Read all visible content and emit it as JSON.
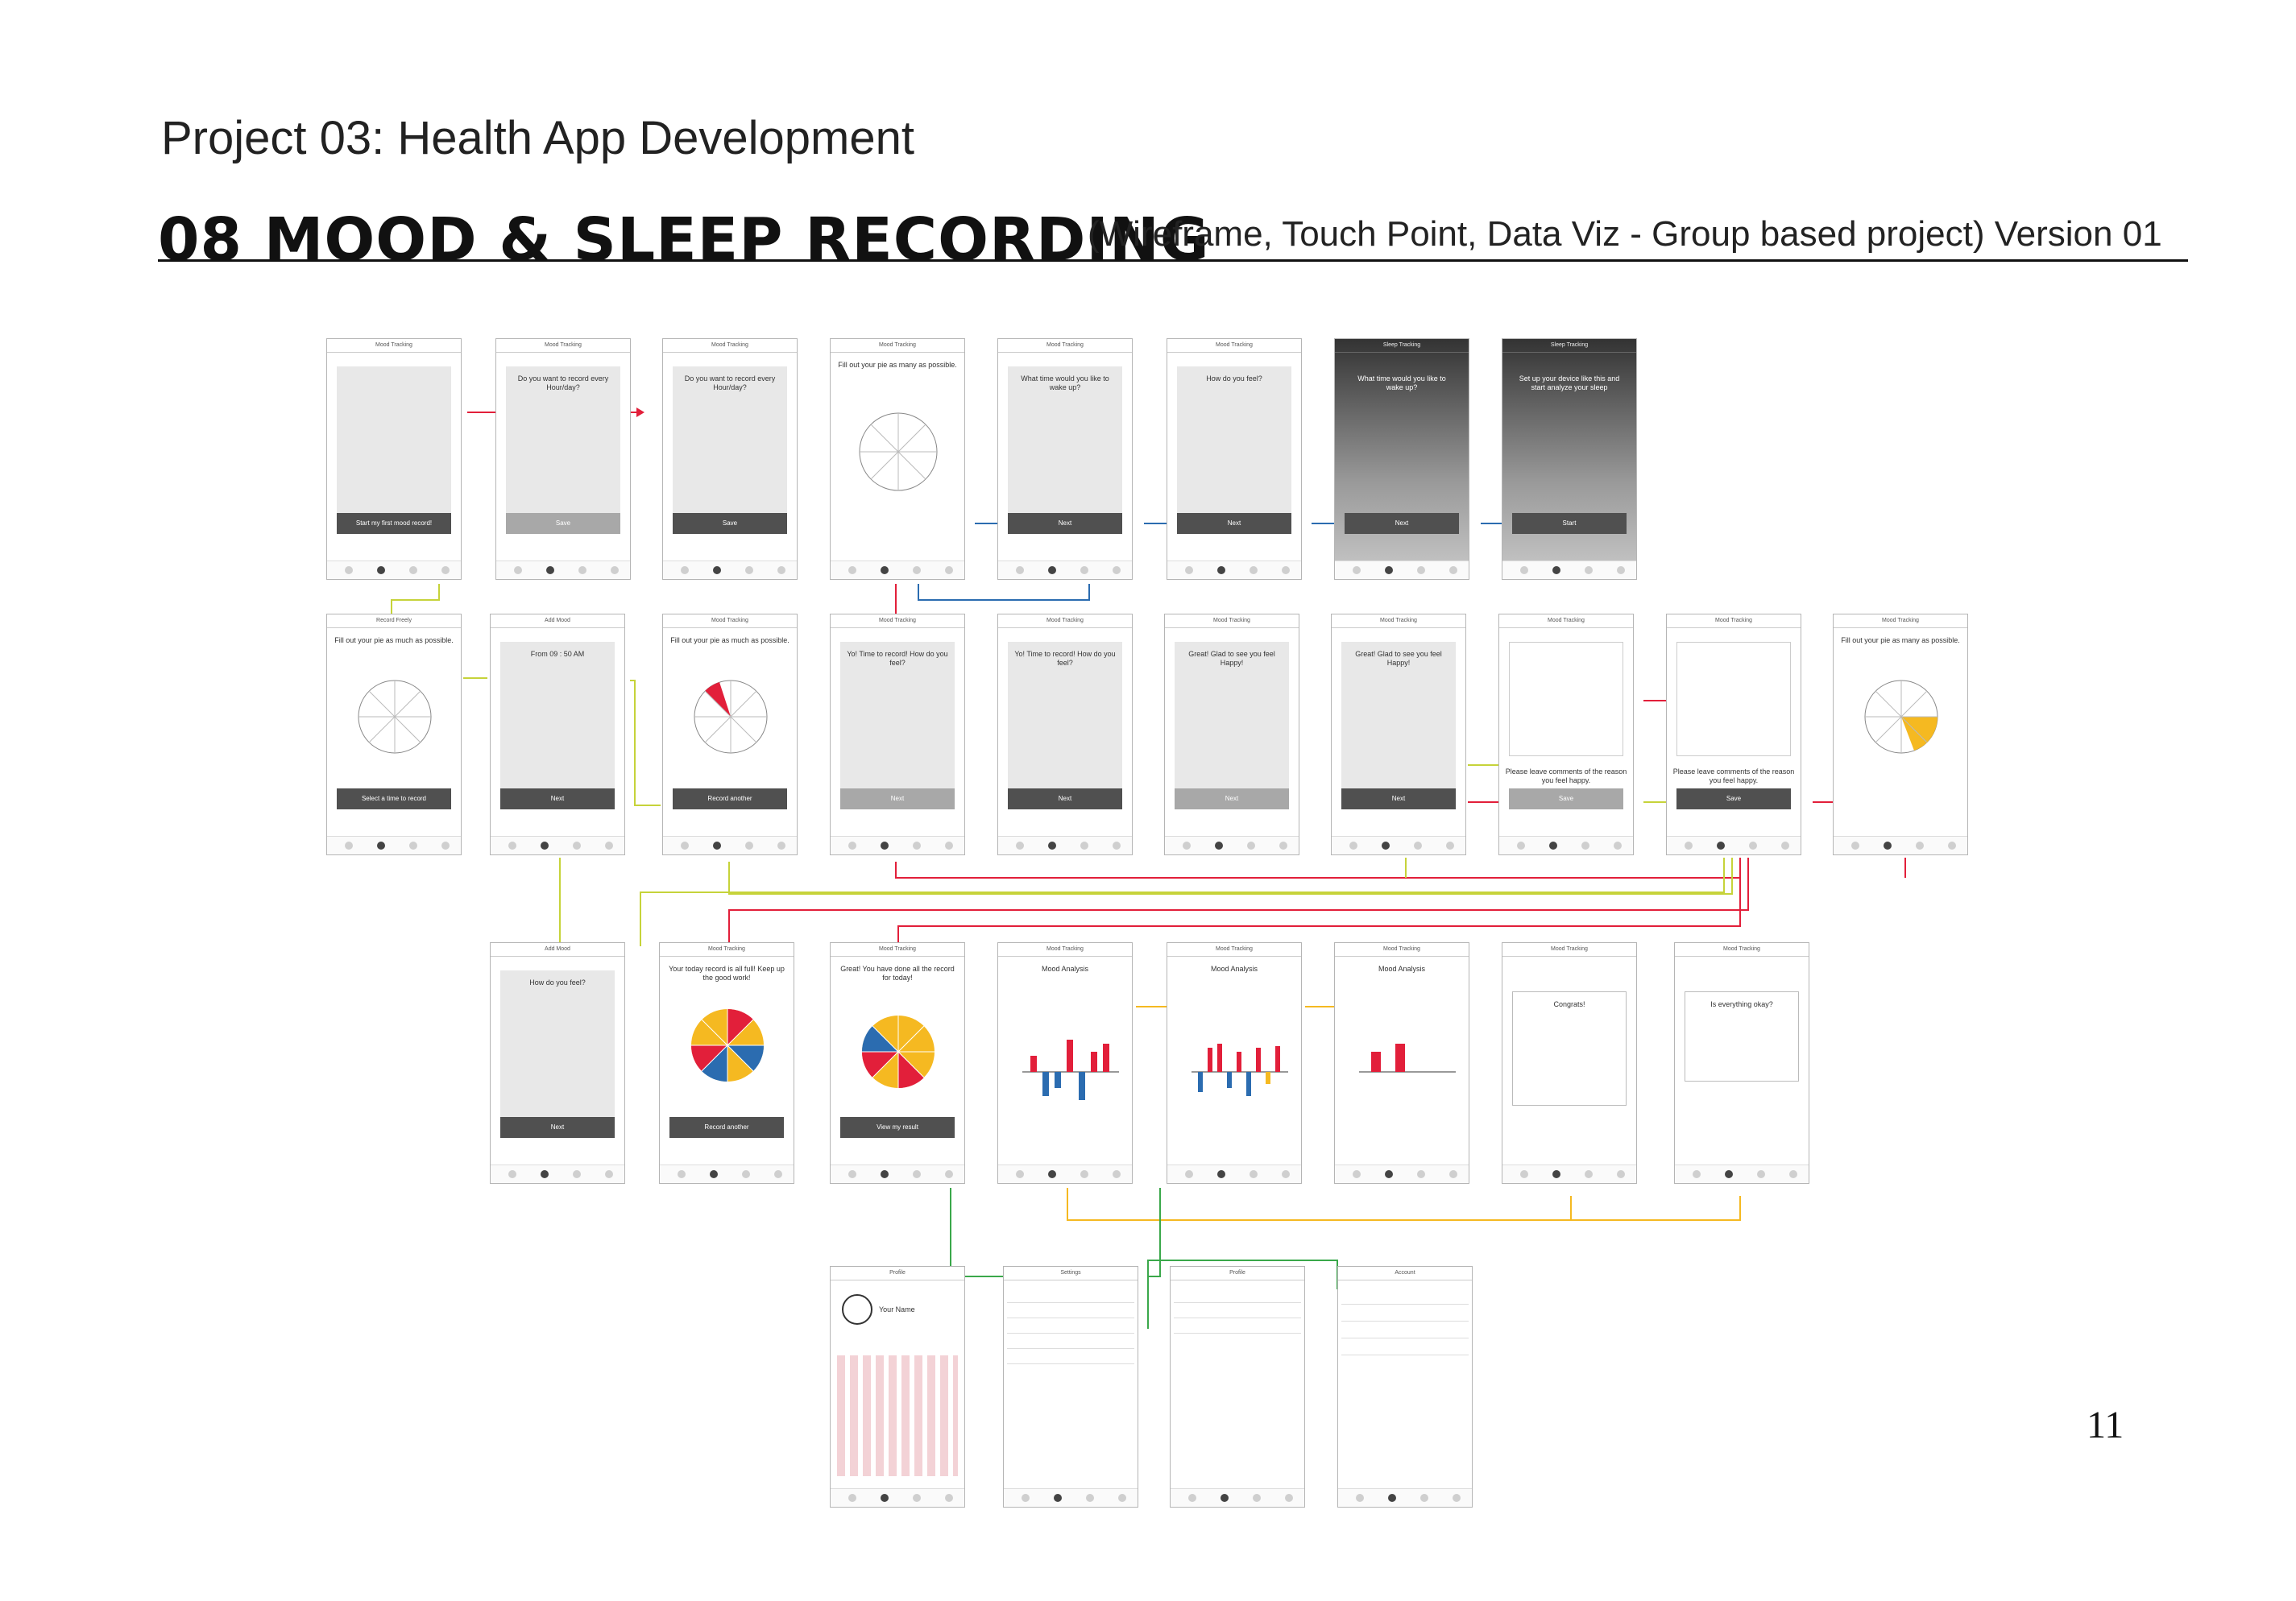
{
  "header": {
    "project": "Project 03: Health App Development",
    "title": "08 MOOD & SLEEP RECORDING",
    "subtitle": "(Wireframe, Touch Point, Data Viz - Group based project) Version 01"
  },
  "page_number": "11",
  "colors": {
    "red": "#e21f3a",
    "blue": "#2b6cb0",
    "yellow": "#f5b921",
    "green": "#3aa84a",
    "lime": "#c6d33a",
    "dark_button": "#505050"
  },
  "screens": {
    "r1": [
      {
        "title": "Mood Tracking",
        "text": "",
        "button": "Start my first mood record!"
      },
      {
        "title": "Mood Tracking",
        "text": "Do you want to record every Hour/day?",
        "button": "Save"
      },
      {
        "title": "Mood Tracking",
        "text": "Do you want to record every Hour/day?",
        "button": "Save"
      },
      {
        "title": "Mood Tracking",
        "text": "Fill out your pie as many as possible.",
        "button": ""
      },
      {
        "title": "Mood Tracking",
        "text": "What time would you like to wake up?",
        "button": "Next"
      },
      {
        "title": "Mood Tracking",
        "text": "How do you feel?",
        "button": "Next"
      },
      {
        "title": "Sleep Tracking",
        "text": "What time would you like to wake up?",
        "button": "Next"
      },
      {
        "title": "Sleep Tracking",
        "text": "Set up your device like this and start analyze your sleep",
        "button": "Start"
      }
    ],
    "r2": [
      {
        "title": "Record Freely",
        "text": "Fill out your pie as much as possible.",
        "button": "Select a time to record"
      },
      {
        "title": "Add Mood",
        "text": "From 09 : 50 AM",
        "button": "Next"
      },
      {
        "title": "Mood Tracking",
        "text": "Fill out your pie as much as possible.",
        "button": "Record another"
      },
      {
        "title": "Mood Tracking",
        "text": "Yo! Time to record! How do you feel?",
        "button": "Next"
      },
      {
        "title": "Mood Tracking",
        "text": "Yo! Time to record! How do you feel?",
        "button": "Next"
      },
      {
        "title": "Mood Tracking",
        "text": "Great! Glad to see you feel Happy!",
        "button": "Next"
      },
      {
        "title": "Mood Tracking",
        "text": "Great! Glad to see you feel Happy!",
        "button": "Next"
      },
      {
        "title": "Mood Tracking",
        "text": "Please leave comments of the reason you feel happy.",
        "button": "Save"
      },
      {
        "title": "Mood Tracking",
        "text": "Please leave comments of the reason you feel happy.",
        "button": "Save"
      },
      {
        "title": "Mood Tracking",
        "text": "Fill out your pie as many as possible.",
        "button": ""
      }
    ],
    "r3": [
      {
        "title": "Add Mood",
        "text": "How do you feel?",
        "button": "Next"
      },
      {
        "title": "Mood Tracking",
        "text": "Your today record is all full! Keep up the good work!",
        "button": "Record another"
      },
      {
        "title": "Mood Tracking",
        "text": "Great! You have done all the record for today!",
        "button": "View my result"
      },
      {
        "title": "Mood Tracking",
        "text": "Mood Analysis",
        "button": ""
      },
      {
        "title": "Mood Tracking",
        "text": "Mood Analysis",
        "button": ""
      },
      {
        "title": "Mood Tracking",
        "text": "Mood Analysis",
        "button": ""
      },
      {
        "title": "Mood Tracking",
        "text": "Congrats!",
        "button": ""
      },
      {
        "title": "Mood Tracking",
        "text": "Is everything okay?",
        "button": ""
      }
    ],
    "r4": [
      {
        "title": "Profile",
        "text": "Your Name",
        "button": ""
      },
      {
        "title": "Settings",
        "text": "",
        "button": ""
      },
      {
        "title": "Profile",
        "text": "",
        "button": ""
      },
      {
        "title": "Account",
        "text": "",
        "button": ""
      }
    ]
  }
}
